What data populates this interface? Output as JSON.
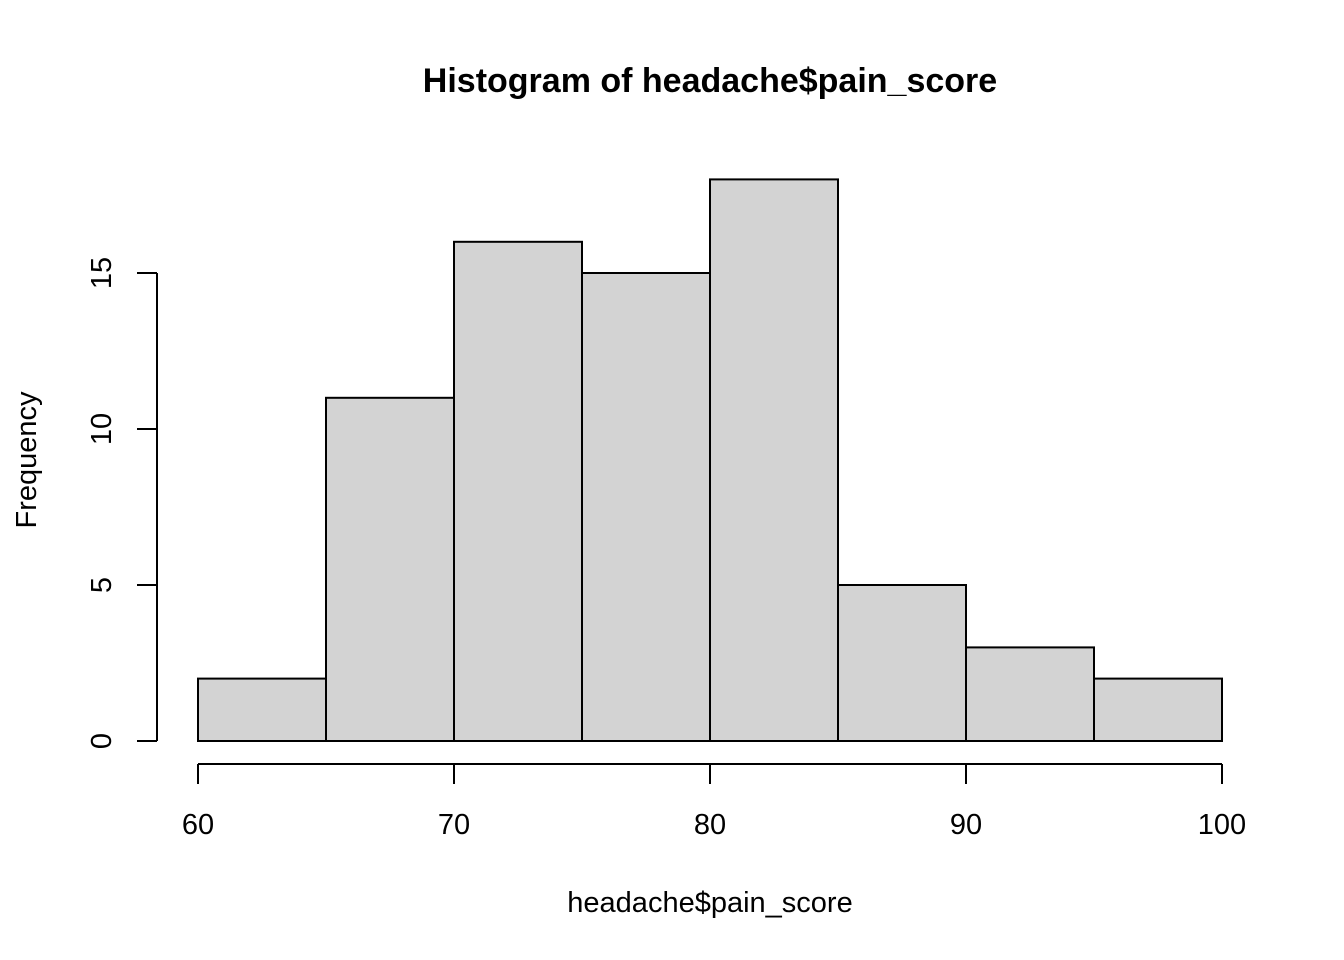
{
  "chart_data": {
    "type": "bar",
    "title": "Histogram of headache$pain_score",
    "xlabel": "headache$pain_score",
    "ylabel": "Frequency",
    "bins": [
      {
        "x0": 60,
        "x1": 65,
        "count": 2
      },
      {
        "x0": 65,
        "x1": 70,
        "count": 11
      },
      {
        "x0": 70,
        "x1": 75,
        "count": 16
      },
      {
        "x0": 75,
        "x1": 80,
        "count": 15
      },
      {
        "x0": 80,
        "x1": 85,
        "count": 18
      },
      {
        "x0": 85,
        "x1": 90,
        "count": 5
      },
      {
        "x0": 90,
        "x1": 95,
        "count": 3
      },
      {
        "x0": 95,
        "x1": 100,
        "count": 2
      }
    ],
    "xlim": [
      60,
      100
    ],
    "ylim": [
      0,
      18
    ],
    "x_ticks": [
      "60",
      "70",
      "80",
      "90",
      "100"
    ],
    "y_ticks": [
      "0",
      "5",
      "10",
      "15"
    ],
    "bar_color": "#d3d3d3",
    "grid": false
  }
}
